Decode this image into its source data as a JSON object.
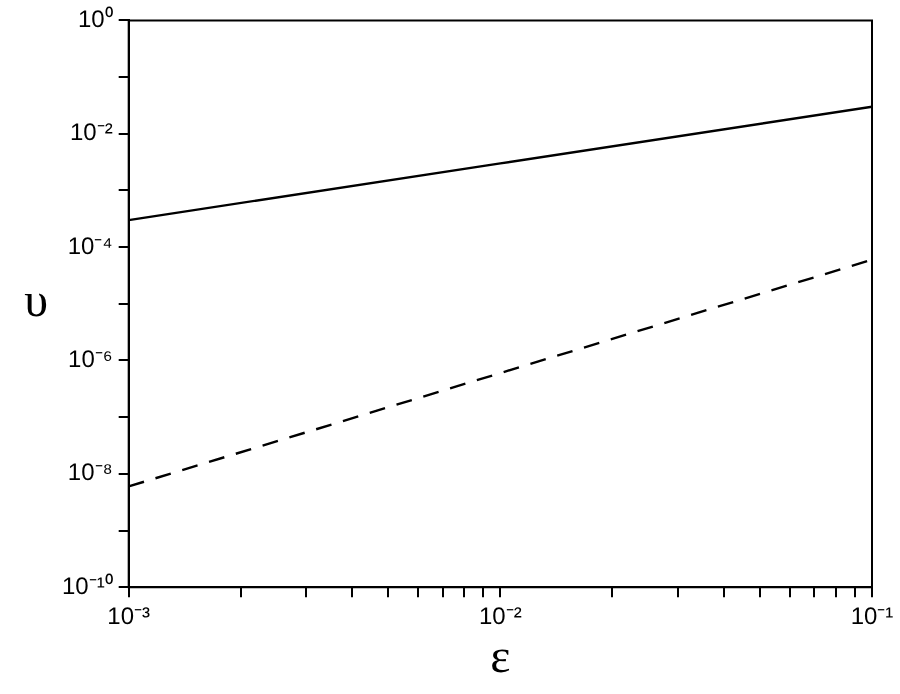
{
  "chart_data": {
    "type": "line",
    "xlabel": "ε",
    "ylabel": "υ",
    "log": "xy",
    "grid": false,
    "legend": false,
    "marker": "none",
    "xlim": [
      0.001,
      0.1
    ],
    "ylim": [
      1e-10,
      1
    ],
    "xticks": [
      {
        "value": 0.001,
        "label": "10⁻³"
      },
      {
        "value": 0.002,
        "label": null
      },
      {
        "value": 0.003,
        "label": null
      },
      {
        "value": 0.004,
        "label": null
      },
      {
        "value": 0.005,
        "label": null
      },
      {
        "value": 0.006,
        "label": null
      },
      {
        "value": 0.007,
        "label": null
      },
      {
        "value": 0.008,
        "label": null
      },
      {
        "value": 0.009,
        "label": null
      },
      {
        "value": 0.01,
        "label": "10⁻²"
      },
      {
        "value": 0.02,
        "label": null
      },
      {
        "value": 0.03,
        "label": null
      },
      {
        "value": 0.04,
        "label": null
      },
      {
        "value": 0.05,
        "label": null
      },
      {
        "value": 0.06,
        "label": null
      },
      {
        "value": 0.07,
        "label": null
      },
      {
        "value": 0.08,
        "label": null
      },
      {
        "value": 0.09,
        "label": null
      },
      {
        "value": 0.1,
        "label": "10⁻¹"
      }
    ],
    "yticks": [
      {
        "value": 1e-10,
        "label": "10⁻¹⁰"
      },
      {
        "value": 1e-09,
        "label": null
      },
      {
        "value": 1e-08,
        "label": "10⁻⁸"
      },
      {
        "value": 1e-07,
        "label": null
      },
      {
        "value": 1e-06,
        "label": "10⁻⁶"
      },
      {
        "value": 1e-05,
        "label": null
      },
      {
        "value": 0.0001,
        "label": "10⁻⁴"
      },
      {
        "value": 0.001,
        "label": null
      },
      {
        "value": 0.01,
        "label": "10⁻²"
      },
      {
        "value": 0.1,
        "label": null
      },
      {
        "value": 1,
        "label": "10⁰"
      }
    ],
    "x": [
      0.001,
      0.01,
      0.1
    ],
    "series": [
      {
        "color": "#000000",
        "line_style": "solid",
        "values": [
          0.0003,
          0.003,
          0.03
        ]
      },
      {
        "color": "#000000",
        "line_style": "dashed",
        "values": [
          6e-09,
          6e-07,
          6e-05
        ]
      }
    ]
  }
}
